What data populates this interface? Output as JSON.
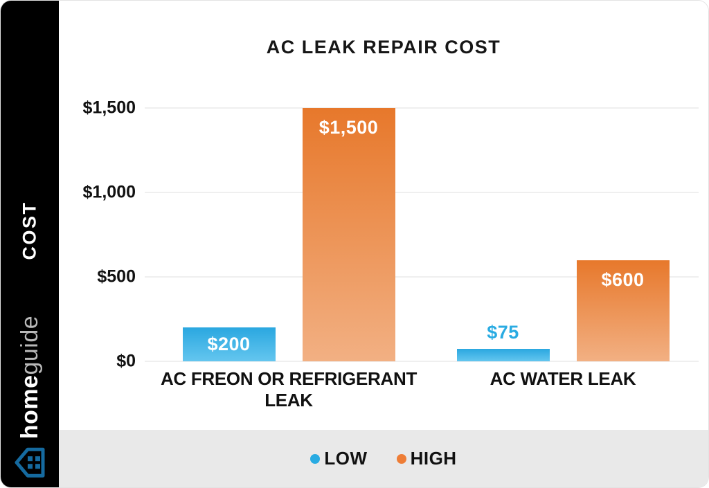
{
  "sidebar": {
    "cost_label": "COST",
    "brand": {
      "bold": "home",
      "light": "guide"
    },
    "background": "#000000",
    "icon_color": "#156a9f"
  },
  "chart_data": {
    "type": "bar",
    "title": "AC LEAK REPAIR COST",
    "categories": [
      "AC FREON OR REFRIGERANT LEAK",
      "AC WATER LEAK"
    ],
    "series": [
      {
        "name": "LOW",
        "values": [
          200,
          75
        ],
        "labels": [
          "$200",
          "$75"
        ],
        "label_positions": [
          "inside-center",
          "above"
        ],
        "color_top": "#2aa7e0",
        "color_bottom": "#64c6ef",
        "legend_color": "#29abe2",
        "label_color_above": "#29abe2"
      },
      {
        "name": "HIGH",
        "values": [
          1500,
          600
        ],
        "labels": [
          "$1,500",
          "$600"
        ],
        "label_positions": [
          "inside-top",
          "inside-top"
        ],
        "color_top": "#e7782b",
        "color_bottom": "#f2b083",
        "legend_color": "#ee7d36"
      }
    ],
    "ylabel": "COST",
    "xlabel": "",
    "ylim": [
      0,
      1500
    ],
    "yticks": [
      {
        "value": 0,
        "label": "$0"
      },
      {
        "value": 500,
        "label": "$500"
      },
      {
        "value": 1000,
        "label": "$1,000"
      },
      {
        "value": 1500,
        "label": "$1,500"
      }
    ],
    "grid": true,
    "legend_position": "bottom"
  }
}
